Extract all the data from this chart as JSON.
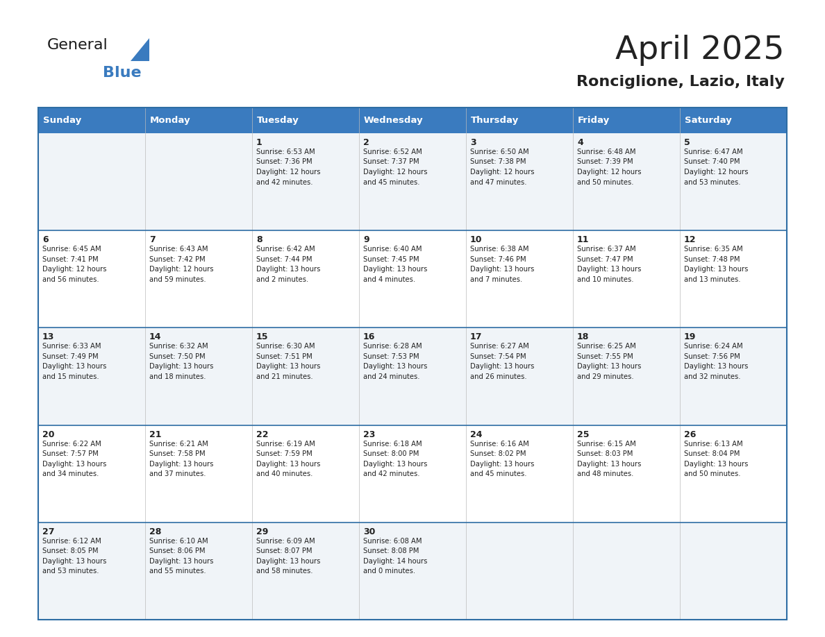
{
  "title": "April 2025",
  "subtitle": "Ronciglione, Lazio, Italy",
  "header_bg": "#3a7bbf",
  "header_text": "#ffffff",
  "row_bg_odd": "#f0f4f8",
  "row_bg_even": "#ffffff",
  "divider_color": "#2e6da4",
  "text_color": "#222222",
  "days_of_week": [
    "Sunday",
    "Monday",
    "Tuesday",
    "Wednesday",
    "Thursday",
    "Friday",
    "Saturday"
  ],
  "weeks": [
    [
      {
        "day": "",
        "sunrise": "",
        "sunset": "",
        "daylight": ""
      },
      {
        "day": "",
        "sunrise": "",
        "sunset": "",
        "daylight": ""
      },
      {
        "day": "1",
        "sunrise": "6:53 AM",
        "sunset": "7:36 PM",
        "daylight": "12 hours and 42 minutes."
      },
      {
        "day": "2",
        "sunrise": "6:52 AM",
        "sunset": "7:37 PM",
        "daylight": "12 hours and 45 minutes."
      },
      {
        "day": "3",
        "sunrise": "6:50 AM",
        "sunset": "7:38 PM",
        "daylight": "12 hours and 47 minutes."
      },
      {
        "day": "4",
        "sunrise": "6:48 AM",
        "sunset": "7:39 PM",
        "daylight": "12 hours and 50 minutes."
      },
      {
        "day": "5",
        "sunrise": "6:47 AM",
        "sunset": "7:40 PM",
        "daylight": "12 hours and 53 minutes."
      }
    ],
    [
      {
        "day": "6",
        "sunrise": "6:45 AM",
        "sunset": "7:41 PM",
        "daylight": "12 hours and 56 minutes."
      },
      {
        "day": "7",
        "sunrise": "6:43 AM",
        "sunset": "7:42 PM",
        "daylight": "12 hours and 59 minutes."
      },
      {
        "day": "8",
        "sunrise": "6:42 AM",
        "sunset": "7:44 PM",
        "daylight": "13 hours and 2 minutes."
      },
      {
        "day": "9",
        "sunrise": "6:40 AM",
        "sunset": "7:45 PM",
        "daylight": "13 hours and 4 minutes."
      },
      {
        "day": "10",
        "sunrise": "6:38 AM",
        "sunset": "7:46 PM",
        "daylight": "13 hours and 7 minutes."
      },
      {
        "day": "11",
        "sunrise": "6:37 AM",
        "sunset": "7:47 PM",
        "daylight": "13 hours and 10 minutes."
      },
      {
        "day": "12",
        "sunrise": "6:35 AM",
        "sunset": "7:48 PM",
        "daylight": "13 hours and 13 minutes."
      }
    ],
    [
      {
        "day": "13",
        "sunrise": "6:33 AM",
        "sunset": "7:49 PM",
        "daylight": "13 hours and 15 minutes."
      },
      {
        "day": "14",
        "sunrise": "6:32 AM",
        "sunset": "7:50 PM",
        "daylight": "13 hours and 18 minutes."
      },
      {
        "day": "15",
        "sunrise": "6:30 AM",
        "sunset": "7:51 PM",
        "daylight": "13 hours and 21 minutes."
      },
      {
        "day": "16",
        "sunrise": "6:28 AM",
        "sunset": "7:53 PM",
        "daylight": "13 hours and 24 minutes."
      },
      {
        "day": "17",
        "sunrise": "6:27 AM",
        "sunset": "7:54 PM",
        "daylight": "13 hours and 26 minutes."
      },
      {
        "day": "18",
        "sunrise": "6:25 AM",
        "sunset": "7:55 PM",
        "daylight": "13 hours and 29 minutes."
      },
      {
        "day": "19",
        "sunrise": "6:24 AM",
        "sunset": "7:56 PM",
        "daylight": "13 hours and 32 minutes."
      }
    ],
    [
      {
        "day": "20",
        "sunrise": "6:22 AM",
        "sunset": "7:57 PM",
        "daylight": "13 hours and 34 minutes."
      },
      {
        "day": "21",
        "sunrise": "6:21 AM",
        "sunset": "7:58 PM",
        "daylight": "13 hours and 37 minutes."
      },
      {
        "day": "22",
        "sunrise": "6:19 AM",
        "sunset": "7:59 PM",
        "daylight": "13 hours and 40 minutes."
      },
      {
        "day": "23",
        "sunrise": "6:18 AM",
        "sunset": "8:00 PM",
        "daylight": "13 hours and 42 minutes."
      },
      {
        "day": "24",
        "sunrise": "6:16 AM",
        "sunset": "8:02 PM",
        "daylight": "13 hours and 45 minutes."
      },
      {
        "day": "25",
        "sunrise": "6:15 AM",
        "sunset": "8:03 PM",
        "daylight": "13 hours and 48 minutes."
      },
      {
        "day": "26",
        "sunrise": "6:13 AM",
        "sunset": "8:04 PM",
        "daylight": "13 hours and 50 minutes."
      }
    ],
    [
      {
        "day": "27",
        "sunrise": "6:12 AM",
        "sunset": "8:05 PM",
        "daylight": "13 hours and 53 minutes."
      },
      {
        "day": "28",
        "sunrise": "6:10 AM",
        "sunset": "8:06 PM",
        "daylight": "13 hours and 55 minutes."
      },
      {
        "day": "29",
        "sunrise": "6:09 AM",
        "sunset": "8:07 PM",
        "daylight": "13 hours and 58 minutes."
      },
      {
        "day": "30",
        "sunrise": "6:08 AM",
        "sunset": "8:08 PM",
        "daylight": "14 hours and 0 minutes."
      },
      {
        "day": "",
        "sunrise": "",
        "sunset": "",
        "daylight": ""
      },
      {
        "day": "",
        "sunrise": "",
        "sunset": "",
        "daylight": ""
      },
      {
        "day": "",
        "sunrise": "",
        "sunset": "",
        "daylight": ""
      }
    ]
  ],
  "logo_general_color": "#1a1a1a",
  "logo_blue_color": "#3a7bbf",
  "logo_triangle_color": "#3a7bbf",
  "fig_width": 11.88,
  "fig_height": 9.18,
  "fig_dpi": 100
}
